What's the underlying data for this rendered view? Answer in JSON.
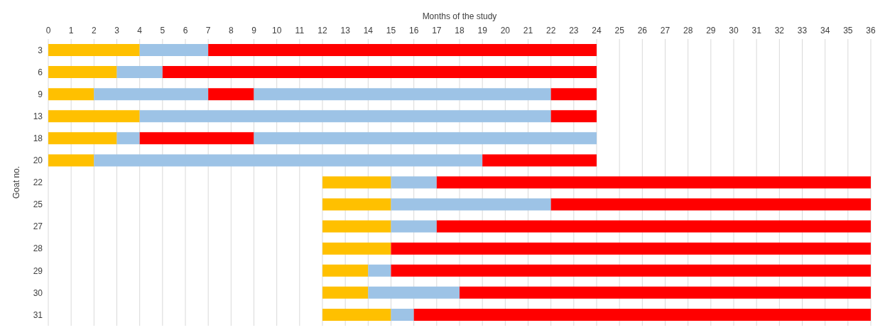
{
  "chart_data": {
    "type": "bar",
    "orientation": "horizontal",
    "xlabel": "Months of the study",
    "ylabel": "Goat no.",
    "categories": [
      "3",
      "6",
      "9",
      "13",
      "18",
      "20",
      "22",
      "25",
      "27",
      "28",
      "29",
      "30",
      "31"
    ],
    "series": [
      {
        "color": "#ffc000",
        "base": [
          0,
          0,
          0,
          0,
          0,
          0,
          12,
          12,
          12,
          12,
          12,
          12,
          12
        ],
        "values": [
          4,
          3,
          2,
          4,
          3,
          2,
          3,
          3,
          3,
          3,
          2,
          2,
          3
        ]
      },
      {
        "color": "#9dc3e6",
        "base": [
          4,
          3,
          2,
          4,
          3,
          2,
          15,
          15,
          15,
          null,
          14,
          14,
          15
        ],
        "values": [
          3,
          2,
          5,
          18,
          1,
          17,
          2,
          7,
          2,
          null,
          1,
          4,
          1
        ]
      },
      {
        "color": "#ff0000",
        "base": [
          7,
          5,
          7,
          22,
          4,
          19,
          17,
          22,
          17,
          15,
          15,
          18,
          16
        ],
        "values": [
          17,
          19,
          2,
          2,
          5,
          5,
          19,
          14,
          19,
          21,
          21,
          18,
          20
        ]
      },
      {
        "color": "#9dc3e6",
        "base": [
          null,
          null,
          9,
          null,
          9,
          null,
          null,
          null,
          null,
          null,
          null,
          null,
          null
        ],
        "values": [
          null,
          null,
          13,
          null,
          15,
          null,
          null,
          null,
          null,
          null,
          null,
          null,
          null
        ]
      },
      {
        "color": "#ff0000",
        "base": [
          null,
          null,
          22,
          null,
          null,
          null,
          null,
          null,
          null,
          null,
          null,
          null,
          null
        ],
        "values": [
          null,
          null,
          2,
          null,
          null,
          null,
          null,
          null,
          null,
          null,
          null,
          null,
          null
        ]
      }
    ],
    "xlim": [
      0,
      36
    ],
    "xticks": [
      0,
      1,
      2,
      3,
      4,
      5,
      6,
      7,
      8,
      9,
      10,
      11,
      12,
      13,
      14,
      15,
      16,
      17,
      18,
      19,
      20,
      21,
      22,
      23,
      24,
      25,
      26,
      27,
      28,
      29,
      30,
      31,
      32,
      33,
      34,
      35,
      36
    ],
    "grid": "x"
  }
}
